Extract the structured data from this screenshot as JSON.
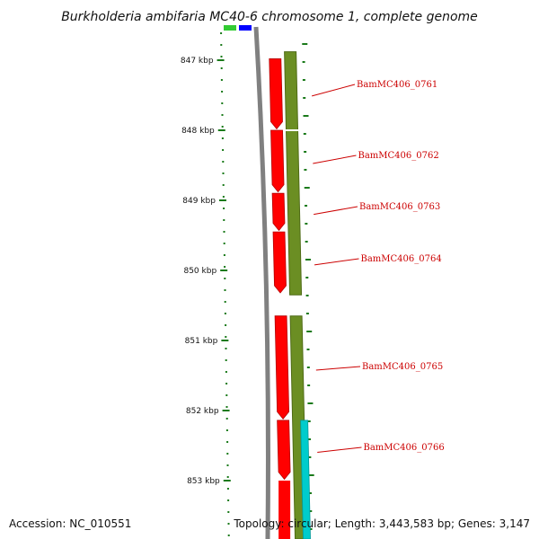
{
  "title": "Burkholderia ambifaria MC40-6 chromosome 1, complete genome",
  "footer": {
    "accession": "Accession: NC_010551",
    "topology": "Topology: circular; Length: 3,443,583 bp; Genes: 3,147"
  },
  "colors": {
    "backbone": "#808080",
    "cds_forward": "#ff0000",
    "gene_track": "#6b8e23",
    "blue_feature": "#0000ff",
    "green_feature": "#33cc33",
    "cyan_feature": "#00cccc",
    "scale_tick": "#1a7a1a",
    "label": "#cc0000"
  },
  "scale": {
    "unit": "kbp",
    "ticks": [
      {
        "label": "847 kbp",
        "value": 847
      },
      {
        "label": "848 kbp",
        "value": 848
      },
      {
        "label": "849 kbp",
        "value": 849
      },
      {
        "label": "850 kbp",
        "value": 850
      },
      {
        "label": "851 kbp",
        "value": 851
      },
      {
        "label": "852 kbp",
        "value": 852
      },
      {
        "label": "853 kbp",
        "value": 853
      }
    ]
  },
  "features": [
    {
      "name": "BamMC406_0761",
      "start": 846.98,
      "end": 847.98
    },
    {
      "name": "BamMC406_0762",
      "start": 848.0,
      "end": 848.88
    },
    {
      "name": "BamMC406_0763",
      "start": 848.9,
      "end": 849.43
    },
    {
      "name": "BamMC406_0764",
      "start": 849.45,
      "end": 850.32
    },
    {
      "name": "BamMC406_0765",
      "start": 850.65,
      "end": 852.12
    },
    {
      "name": "BamMC406_0766",
      "start": 852.14,
      "end": 852.98
    }
  ]
}
